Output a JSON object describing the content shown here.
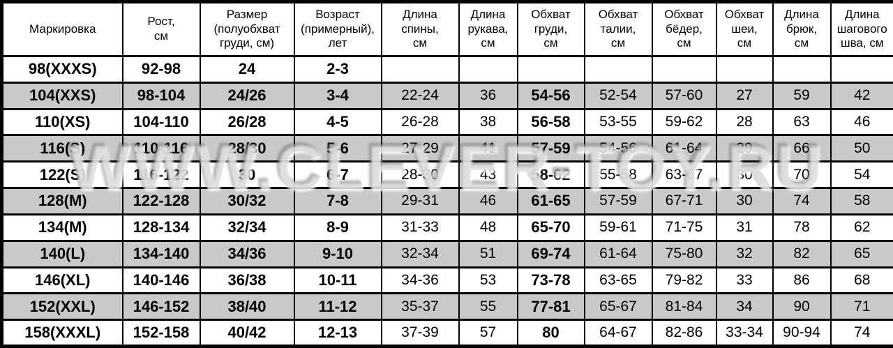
{
  "watermark": {
    "text": "WWW.CLEVER-TOY.RU"
  },
  "colors": {
    "row_stripe": "#c9c9c9",
    "border": "#000000",
    "background": "#ffffff",
    "text": "#000000"
  },
  "table": {
    "columns": [
      "Маркировка",
      "Рост,\nсм",
      "Размер\n(полуобхват\nгруди, см)",
      "Возраст\n(примерный),\nлет",
      "Длина\nспины,\nсм",
      "Длина\nрукава,\nсм",
      "Обхват\nгруди,\nсм",
      "Обхват\nталии,\nсм",
      "Обхват\nбёдер,\nсм",
      "Обхват\nшеи,\nсм",
      "Длина\nбрюк,\nсм",
      "Длина\nшагового\nшва, см"
    ],
    "rows": [
      [
        "98(XXXS)",
        "92-98",
        "24",
        "2-3",
        "",
        "",
        "",
        "",
        "",
        "",
        "",
        ""
      ],
      [
        "104(XXS)",
        "98-104",
        "24/26",
        "3-4",
        "22-24",
        "36",
        "54-56",
        "52-54",
        "57-60",
        "27",
        "59",
        "42"
      ],
      [
        "110(XS)",
        "104-110",
        "26/28",
        "4-5",
        "26-28",
        "38",
        "56-58",
        "53-55",
        "59-62",
        "28",
        "63",
        "46"
      ],
      [
        "116(S)",
        "110-116",
        "28/30",
        "5-6",
        "27-29",
        "41",
        "57-59",
        "54-56",
        "61-64",
        "29",
        "66",
        "50"
      ],
      [
        "122(S)",
        "116-122",
        "30",
        "6-7",
        "28-30",
        "43",
        "58-62",
        "55-58",
        "63-67",
        "30",
        "70",
        "54"
      ],
      [
        "128(M)",
        "122-128",
        "30/32",
        "7-8",
        "29-31",
        "46",
        "61-65",
        "57-59",
        "67-71",
        "30",
        "74",
        "58"
      ],
      [
        "134(M)",
        "128-134",
        "32/34",
        "8-9",
        "31-33",
        "48",
        "65-70",
        "59-61",
        "71-75",
        "31",
        "78",
        "62"
      ],
      [
        "140(L)",
        "134-140",
        "34/36",
        "9-10",
        "32-34",
        "51",
        "69-74",
        "61-64",
        "75-80",
        "32",
        "82",
        "65"
      ],
      [
        "146(XL)",
        "140-146",
        "36/38",
        "10-11",
        "34-36",
        "53",
        "73-78",
        "63-65",
        "79-82",
        "33",
        "86",
        "68"
      ],
      [
        "152(XXL)",
        "146-152",
        "38/40",
        "11-12",
        "35-37",
        "55",
        "77-81",
        "65-67",
        "81-84",
        "34",
        "90",
        "71"
      ],
      [
        "158(XXXL)",
        "152-158",
        "40/42",
        "12-13",
        "37-39",
        "57",
        "80",
        "64-67",
        "82-86",
        "33-34",
        "90-94",
        "74"
      ]
    ]
  }
}
